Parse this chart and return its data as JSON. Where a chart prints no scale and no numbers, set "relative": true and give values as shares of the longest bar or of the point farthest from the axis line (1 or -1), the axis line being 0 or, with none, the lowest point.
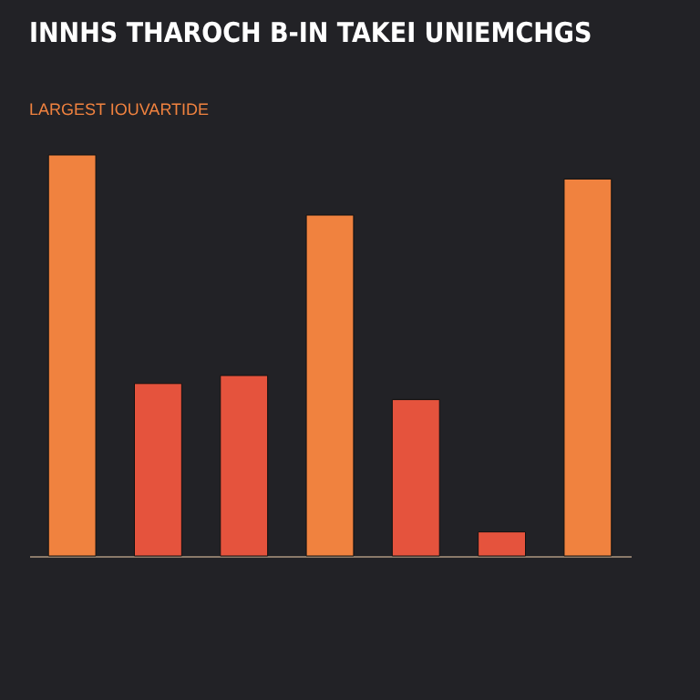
{
  "chart_data": {
    "type": "bar",
    "title": "INNHS THAROCH B-IN TAKEI UNIEMCHGS",
    "subtitle": "LARGEST IOUVARTIDE",
    "relative": true,
    "categories": [
      null,
      null,
      null,
      null,
      null,
      null,
      null
    ],
    "values": [
      1,
      0.43,
      0.45,
      0.85,
      0.39,
      0.06,
      0.94
    ],
    "colors": [
      "#f0823f",
      "#e5533d",
      "#e5533d",
      "#f0823f",
      "#e5533d",
      "#e5533d",
      "#f0823f"
    ]
  }
}
